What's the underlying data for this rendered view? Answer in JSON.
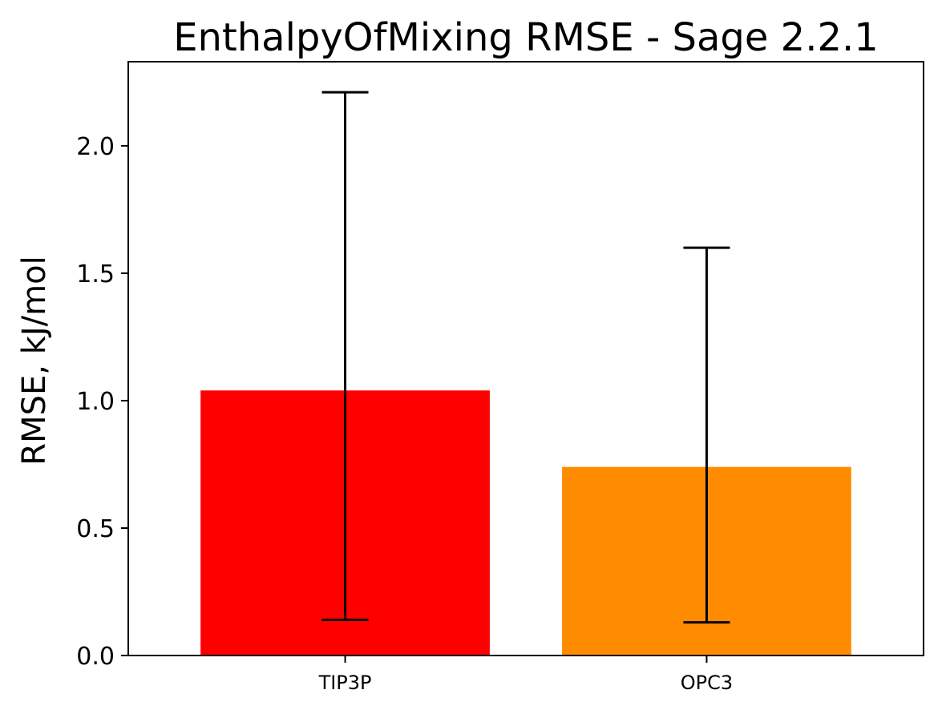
{
  "chart_data": {
    "type": "bar",
    "title": "EnthalpyOfMixing RMSE - Sage 2.2.1",
    "xlabel": "",
    "ylabel": "RMSE, kJ/mol",
    "categories": [
      "TIP3P",
      "OPC3"
    ],
    "values": [
      1.04,
      0.74
    ],
    "error_bars": [
      {
        "low": 0.14,
        "high": 2.21
      },
      {
        "low": 0.13,
        "high": 1.6
      }
    ],
    "colors": [
      "#ff0000",
      "#ff8c00"
    ],
    "error_bar_color": "#000000",
    "ylim": [
      0,
      2.33
    ],
    "yticks": [
      {
        "value": 0.0,
        "label": "0.0"
      },
      {
        "value": 0.5,
        "label": "0.5"
      },
      {
        "value": 1.0,
        "label": "1.0"
      },
      {
        "value": 1.5,
        "label": "1.5"
      },
      {
        "value": 2.0,
        "label": "2.0"
      }
    ],
    "grid": false,
    "legend": "none"
  }
}
